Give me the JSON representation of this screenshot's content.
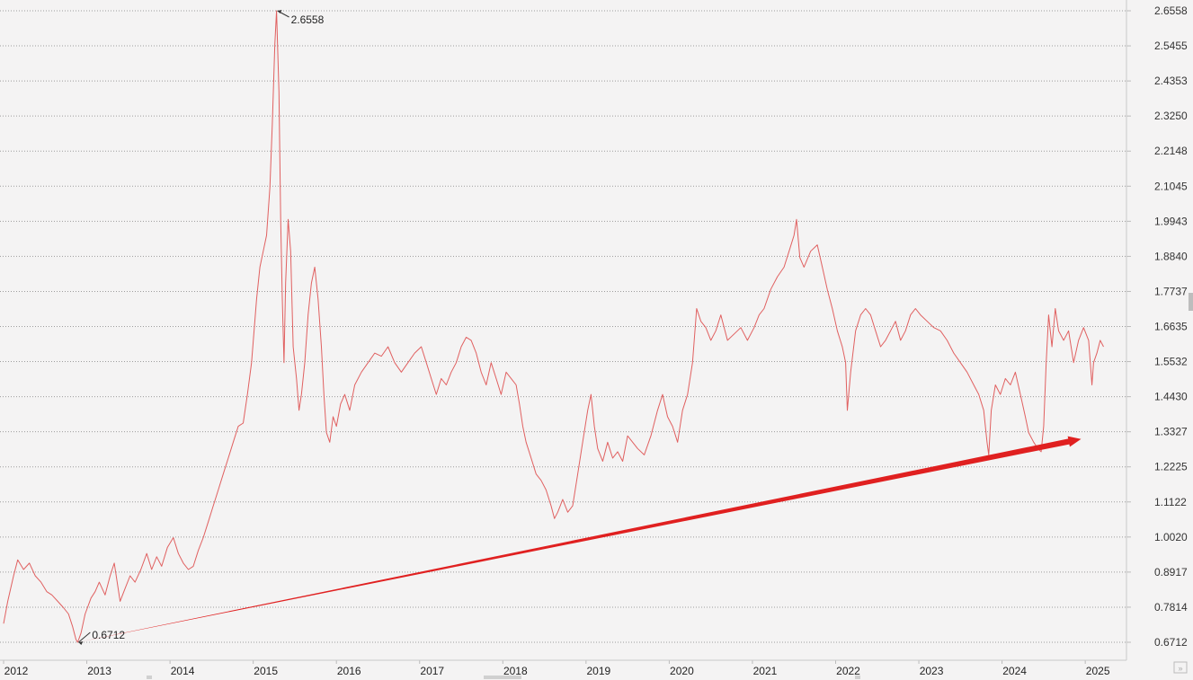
{
  "chart_data": {
    "type": "line",
    "title": "",
    "xlabel": "",
    "ylabel": "",
    "x_ticks": [
      "2012",
      "2013",
      "2014",
      "2015",
      "2016",
      "2017",
      "2018",
      "2019",
      "2020",
      "2021",
      "2022",
      "2023",
      "2024",
      "2025"
    ],
    "y_ticks": [
      "2.6558",
      "2.5455",
      "2.4353",
      "2.3250",
      "2.2148",
      "2.1045",
      "1.9943",
      "1.8840",
      "1.7737",
      "1.6635",
      "1.5532",
      "1.4430",
      "1.3327",
      "1.2225",
      "1.1122",
      "1.0020",
      "0.8917",
      "0.7814",
      "0.6712"
    ],
    "ylim": [
      0.6712,
      2.6558
    ],
    "xlim": [
      2012.0,
      2025.3
    ],
    "grid": true,
    "legend": "none",
    "series": [
      {
        "color": "#e06060",
        "points": [
          [
            2012.0,
            0.73
          ],
          [
            2012.05,
            0.8
          ],
          [
            2012.12,
            0.88
          ],
          [
            2012.17,
            0.93
          ],
          [
            2012.24,
            0.9
          ],
          [
            2012.31,
            0.92
          ],
          [
            2012.38,
            0.88
          ],
          [
            2012.45,
            0.86
          ],
          [
            2012.52,
            0.83
          ],
          [
            2012.58,
            0.82
          ],
          [
            2012.65,
            0.8
          ],
          [
            2012.72,
            0.78
          ],
          [
            2012.78,
            0.76
          ],
          [
            2012.83,
            0.72
          ],
          [
            2012.87,
            0.68
          ],
          [
            2012.89,
            0.6712
          ],
          [
            2012.93,
            0.7
          ],
          [
            2012.98,
            0.76
          ],
          [
            2013.05,
            0.81
          ],
          [
            2013.1,
            0.83
          ],
          [
            2013.15,
            0.86
          ],
          [
            2013.22,
            0.82
          ],
          [
            2013.28,
            0.88
          ],
          [
            2013.33,
            0.92
          ],
          [
            2013.4,
            0.8
          ],
          [
            2013.46,
            0.84
          ],
          [
            2013.52,
            0.88
          ],
          [
            2013.58,
            0.86
          ],
          [
            2013.65,
            0.9
          ],
          [
            2013.72,
            0.95
          ],
          [
            2013.78,
            0.9
          ],
          [
            2013.84,
            0.94
          ],
          [
            2013.9,
            0.91
          ],
          [
            2013.97,
            0.97
          ],
          [
            2014.04,
            1.0
          ],
          [
            2014.1,
            0.95
          ],
          [
            2014.16,
            0.92
          ],
          [
            2014.22,
            0.9
          ],
          [
            2014.28,
            0.91
          ],
          [
            2014.34,
            0.96
          ],
          [
            2014.4,
            1.0
          ],
          [
            2014.46,
            1.05
          ],
          [
            2014.52,
            1.1
          ],
          [
            2014.58,
            1.15
          ],
          [
            2014.64,
            1.2
          ],
          [
            2014.7,
            1.25
          ],
          [
            2014.76,
            1.3
          ],
          [
            2014.82,
            1.35
          ],
          [
            2014.88,
            1.36
          ],
          [
            2014.93,
            1.45
          ],
          [
            2014.98,
            1.55
          ],
          [
            2015.04,
            1.75
          ],
          [
            2015.08,
            1.85
          ],
          [
            2015.12,
            1.9
          ],
          [
            2015.16,
            1.95
          ],
          [
            2015.2,
            2.1
          ],
          [
            2015.23,
            2.3
          ],
          [
            2015.26,
            2.55
          ],
          [
            2015.28,
            2.6558
          ],
          [
            2015.31,
            2.4
          ],
          [
            2015.33,
            2.0
          ],
          [
            2015.35,
            1.75
          ],
          [
            2015.37,
            1.55
          ],
          [
            2015.39,
            1.8
          ],
          [
            2015.42,
            2.0
          ],
          [
            2015.45,
            1.9
          ],
          [
            2015.48,
            1.6
          ],
          [
            2015.52,
            1.5
          ],
          [
            2015.55,
            1.4
          ],
          [
            2015.58,
            1.45
          ],
          [
            2015.62,
            1.55
          ],
          [
            2015.66,
            1.7
          ],
          [
            2015.7,
            1.8
          ],
          [
            2015.74,
            1.85
          ],
          [
            2015.78,
            1.75
          ],
          [
            2015.82,
            1.6
          ],
          [
            2015.85,
            1.45
          ],
          [
            2015.88,
            1.33
          ],
          [
            2015.92,
            1.3
          ],
          [
            2015.96,
            1.38
          ],
          [
            2016.0,
            1.35
          ],
          [
            2016.05,
            1.42
          ],
          [
            2016.1,
            1.45
          ],
          [
            2016.16,
            1.4
          ],
          [
            2016.22,
            1.48
          ],
          [
            2016.3,
            1.52
          ],
          [
            2016.38,
            1.55
          ],
          [
            2016.46,
            1.58
          ],
          [
            2016.54,
            1.57
          ],
          [
            2016.62,
            1.6
          ],
          [
            2016.7,
            1.55
          ],
          [
            2016.78,
            1.52
          ],
          [
            2016.86,
            1.55
          ],
          [
            2016.94,
            1.58
          ],
          [
            2017.02,
            1.6
          ],
          [
            2017.08,
            1.55
          ],
          [
            2017.14,
            1.5
          ],
          [
            2017.2,
            1.45
          ],
          [
            2017.26,
            1.5
          ],
          [
            2017.32,
            1.48
          ],
          [
            2017.38,
            1.52
          ],
          [
            2017.44,
            1.55
          ],
          [
            2017.5,
            1.6
          ],
          [
            2017.56,
            1.63
          ],
          [
            2017.62,
            1.62
          ],
          [
            2017.68,
            1.58
          ],
          [
            2017.74,
            1.52
          ],
          [
            2017.8,
            1.48
          ],
          [
            2017.86,
            1.55
          ],
          [
            2017.92,
            1.5
          ],
          [
            2017.98,
            1.45
          ],
          [
            2018.04,
            1.52
          ],
          [
            2018.1,
            1.5
          ],
          [
            2018.16,
            1.48
          ],
          [
            2018.2,
            1.42
          ],
          [
            2018.24,
            1.35
          ],
          [
            2018.28,
            1.3
          ],
          [
            2018.34,
            1.25
          ],
          [
            2018.4,
            1.2
          ],
          [
            2018.46,
            1.18
          ],
          [
            2018.52,
            1.15
          ],
          [
            2018.58,
            1.1
          ],
          [
            2018.62,
            1.06
          ],
          [
            2018.66,
            1.08
          ],
          [
            2018.72,
            1.12
          ],
          [
            2018.78,
            1.08
          ],
          [
            2018.84,
            1.1
          ],
          [
            2018.9,
            1.2
          ],
          [
            2018.96,
            1.3
          ],
          [
            2019.02,
            1.4
          ],
          [
            2019.06,
            1.45
          ],
          [
            2019.1,
            1.35
          ],
          [
            2019.14,
            1.28
          ],
          [
            2019.2,
            1.24
          ],
          [
            2019.26,
            1.3
          ],
          [
            2019.32,
            1.25
          ],
          [
            2019.38,
            1.27
          ],
          [
            2019.44,
            1.24
          ],
          [
            2019.5,
            1.32
          ],
          [
            2019.56,
            1.3
          ],
          [
            2019.62,
            1.28
          ],
          [
            2019.7,
            1.26
          ],
          [
            2019.78,
            1.32
          ],
          [
            2019.86,
            1.4
          ],
          [
            2019.92,
            1.45
          ],
          [
            2019.98,
            1.38
          ],
          [
            2020.04,
            1.35
          ],
          [
            2020.1,
            1.3
          ],
          [
            2020.16,
            1.4
          ],
          [
            2020.22,
            1.45
          ],
          [
            2020.28,
            1.55
          ],
          [
            2020.33,
            1.72
          ],
          [
            2020.38,
            1.68
          ],
          [
            2020.44,
            1.66
          ],
          [
            2020.5,
            1.62
          ],
          [
            2020.56,
            1.65
          ],
          [
            2020.62,
            1.7
          ],
          [
            2020.7,
            1.62
          ],
          [
            2020.78,
            1.64
          ],
          [
            2020.86,
            1.66
          ],
          [
            2020.94,
            1.62
          ],
          [
            2021.02,
            1.66
          ],
          [
            2021.08,
            1.7
          ],
          [
            2021.14,
            1.72
          ],
          [
            2021.22,
            1.78
          ],
          [
            2021.3,
            1.82
          ],
          [
            2021.38,
            1.85
          ],
          [
            2021.44,
            1.9
          ],
          [
            2021.5,
            1.95
          ],
          [
            2021.53,
            2.0
          ],
          [
            2021.57,
            1.88
          ],
          [
            2021.62,
            1.85
          ],
          [
            2021.7,
            1.9
          ],
          [
            2021.78,
            1.92
          ],
          [
            2021.84,
            1.85
          ],
          [
            2021.9,
            1.78
          ],
          [
            2021.96,
            1.72
          ],
          [
            2022.02,
            1.65
          ],
          [
            2022.08,
            1.6
          ],
          [
            2022.12,
            1.55
          ],
          [
            2022.14,
            1.4
          ],
          [
            2022.18,
            1.52
          ],
          [
            2022.24,
            1.65
          ],
          [
            2022.3,
            1.7
          ],
          [
            2022.36,
            1.72
          ],
          [
            2022.42,
            1.7
          ],
          [
            2022.48,
            1.65
          ],
          [
            2022.54,
            1.6
          ],
          [
            2022.6,
            1.62
          ],
          [
            2022.66,
            1.65
          ],
          [
            2022.72,
            1.68
          ],
          [
            2022.78,
            1.62
          ],
          [
            2022.84,
            1.65
          ],
          [
            2022.9,
            1.7
          ],
          [
            2022.96,
            1.72
          ],
          [
            2023.02,
            1.7
          ],
          [
            2023.1,
            1.68
          ],
          [
            2023.18,
            1.66
          ],
          [
            2023.26,
            1.65
          ],
          [
            2023.34,
            1.62
          ],
          [
            2023.42,
            1.58
          ],
          [
            2023.5,
            1.55
          ],
          [
            2023.58,
            1.52
          ],
          [
            2023.66,
            1.48
          ],
          [
            2023.72,
            1.45
          ],
          [
            2023.78,
            1.4
          ],
          [
            2023.82,
            1.3
          ],
          [
            2023.84,
            1.26
          ],
          [
            2023.87,
            1.4
          ],
          [
            2023.92,
            1.48
          ],
          [
            2023.98,
            1.45
          ],
          [
            2024.04,
            1.5
          ],
          [
            2024.1,
            1.48
          ],
          [
            2024.16,
            1.52
          ],
          [
            2024.22,
            1.45
          ],
          [
            2024.28,
            1.38
          ],
          [
            2024.32,
            1.33
          ],
          [
            2024.38,
            1.3
          ],
          [
            2024.43,
            1.28
          ],
          [
            2024.47,
            1.27
          ],
          [
            2024.5,
            1.35
          ],
          [
            2024.53,
            1.55
          ],
          [
            2024.56,
            1.7
          ],
          [
            2024.6,
            1.6
          ],
          [
            2024.64,
            1.72
          ],
          [
            2024.68,
            1.65
          ],
          [
            2024.74,
            1.62
          ],
          [
            2024.8,
            1.65
          ],
          [
            2024.86,
            1.55
          ],
          [
            2024.92,
            1.62
          ],
          [
            2024.98,
            1.66
          ],
          [
            2025.04,
            1.62
          ],
          [
            2025.08,
            1.48
          ],
          [
            2025.1,
            1.55
          ],
          [
            2025.14,
            1.58
          ],
          [
            2025.18,
            1.62
          ],
          [
            2025.22,
            1.6
          ]
        ]
      }
    ],
    "annotations": [
      {
        "text": "2.6558",
        "x": 2015.28,
        "y": 2.6558
      },
      {
        "text": "0.6712",
        "x": 2012.89,
        "y": 0.6712
      }
    ],
    "trend_arrow": {
      "color": "#e02020",
      "from": [
        2012.89,
        0.6712
      ],
      "to": [
        2024.95,
        1.31
      ]
    }
  }
}
